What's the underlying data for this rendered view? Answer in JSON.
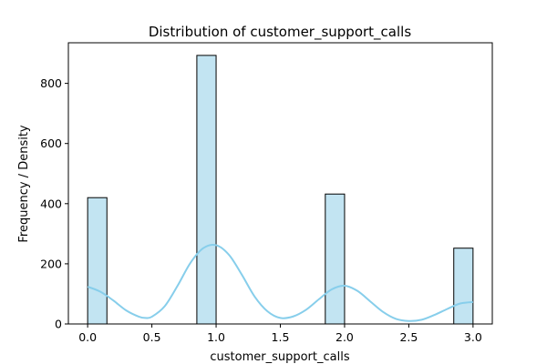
{
  "chart_data": {
    "type": "bar",
    "title": "Distribution of customer_support_calls",
    "xlabel": "customer_support_calls",
    "ylabel": "Frequency / Density",
    "xlim": [
      -0.15,
      3.15
    ],
    "ylim": [
      0,
      935
    ],
    "xticks": [
      0.0,
      0.5,
      1.0,
      1.5,
      2.0,
      2.5,
      3.0
    ],
    "xtick_labels": [
      "0.0",
      "0.5",
      "1.0",
      "1.5",
      "2.0",
      "2.5",
      "3.0"
    ],
    "yticks": [
      0,
      200,
      400,
      600,
      800
    ],
    "ytick_labels": [
      "0",
      "200",
      "400",
      "600",
      "800"
    ],
    "bin_width": 0.15,
    "bins": [
      {
        "x_start": 0.0,
        "value": 420
      },
      {
        "x_start": 0.85,
        "value": 893
      },
      {
        "x_start": 1.85,
        "value": 432
      },
      {
        "x_start": 2.85,
        "value": 252
      }
    ],
    "density_curve": {
      "x": [
        0.0,
        0.1,
        0.2,
        0.3,
        0.4,
        0.45,
        0.5,
        0.6,
        0.7,
        0.8,
        0.9,
        1.0,
        1.1,
        1.2,
        1.3,
        1.4,
        1.5,
        1.6,
        1.7,
        1.8,
        1.9,
        2.0,
        2.1,
        2.2,
        2.3,
        2.4,
        2.5,
        2.6,
        2.7,
        2.8,
        2.9,
        3.0
      ],
      "y": [
        124,
        107,
        78,
        45,
        24,
        20,
        24,
        59,
        127,
        203,
        252,
        262,
        230,
        164,
        91,
        42,
        20,
        25,
        47,
        82,
        115,
        127,
        110,
        75,
        40,
        17,
        10,
        14,
        30,
        50,
        68,
        73
      ]
    },
    "colors": {
      "bar_fill": "#c2e4f2",
      "bar_edge": "#000000",
      "curve": "#87ceeb"
    },
    "grid": false
  }
}
